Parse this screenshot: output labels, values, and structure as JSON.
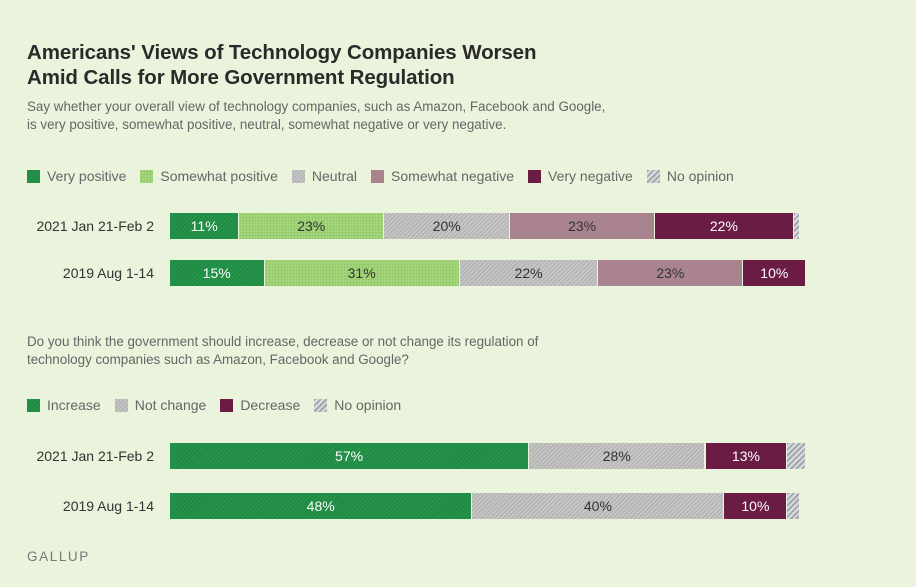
{
  "title_lines": [
    "Americans' Views of Technology Companies Worsen",
    "Amid Calls for More Government Regulation"
  ],
  "brand": "GALLUP",
  "chart_data": [
    {
      "type": "bar",
      "orientation": "horizontal-stacked",
      "question_lines": [
        "Say whether your overall view of technology companies, such as Amazon, Facebook and Google,",
        "is very positive, somewhat positive, neutral, somewhat negative or very negative."
      ],
      "categories": [
        "2021 Jan 21-Feb 2",
        "2019 Aug 1-14"
      ],
      "series": [
        {
          "name": "Very positive",
          "key": "verypos",
          "color": "#1f8a43",
          "values": [
            11,
            15
          ],
          "labels": [
            "11%",
            "15%"
          ]
        },
        {
          "name": "Somewhat positive",
          "key": "sompos",
          "color": "#a4d57a",
          "values": [
            23,
            31
          ],
          "labels": [
            "23%",
            "31%"
          ]
        },
        {
          "name": "Neutral",
          "key": "neutral",
          "color": "#bdbdbd",
          "values": [
            20,
            22
          ],
          "labels": [
            "20%",
            "22%"
          ]
        },
        {
          "name": "Somewhat negative",
          "key": "somneg",
          "color": "#a9838d",
          "values": [
            23,
            23
          ],
          "labels": [
            "23%",
            "23%"
          ]
        },
        {
          "name": "Very negative",
          "key": "veryneg",
          "color": "#6a1c44",
          "values": [
            22,
            10
          ],
          "labels": [
            "22%",
            "10%"
          ]
        },
        {
          "name": "No opinion",
          "key": "noop",
          "color": "#b0b2b8",
          "values": [
            1,
            0
          ],
          "labels": [
            "",
            ""
          ]
        }
      ],
      "xlim": [
        0,
        100
      ]
    },
    {
      "type": "bar",
      "orientation": "horizontal-stacked",
      "question_lines": [
        "Do you think the government should increase, decrease or not change its regulation of",
        "technology companies such as Amazon, Facebook and Google?"
      ],
      "categories": [
        "2021 Jan 21-Feb 2",
        "2019 Aug 1-14"
      ],
      "series": [
        {
          "name": "Increase",
          "key": "increase",
          "color": "#1f8a43",
          "values": [
            57,
            48
          ],
          "labels": [
            "57%",
            "48%"
          ]
        },
        {
          "name": "Not change",
          "key": "notchange",
          "color": "#bdbdbd",
          "values": [
            28,
            40
          ],
          "labels": [
            "28%",
            "40%"
          ]
        },
        {
          "name": "Decrease",
          "key": "decrease",
          "color": "#6a1c44",
          "values": [
            13,
            10
          ],
          "labels": [
            "13%",
            "10%"
          ]
        },
        {
          "name": "No opinion",
          "key": "noop",
          "color": "#b0b2b8",
          "values": [
            3,
            2
          ],
          "labels": [
            "",
            ""
          ]
        }
      ],
      "xlim": [
        0,
        100
      ]
    }
  ]
}
